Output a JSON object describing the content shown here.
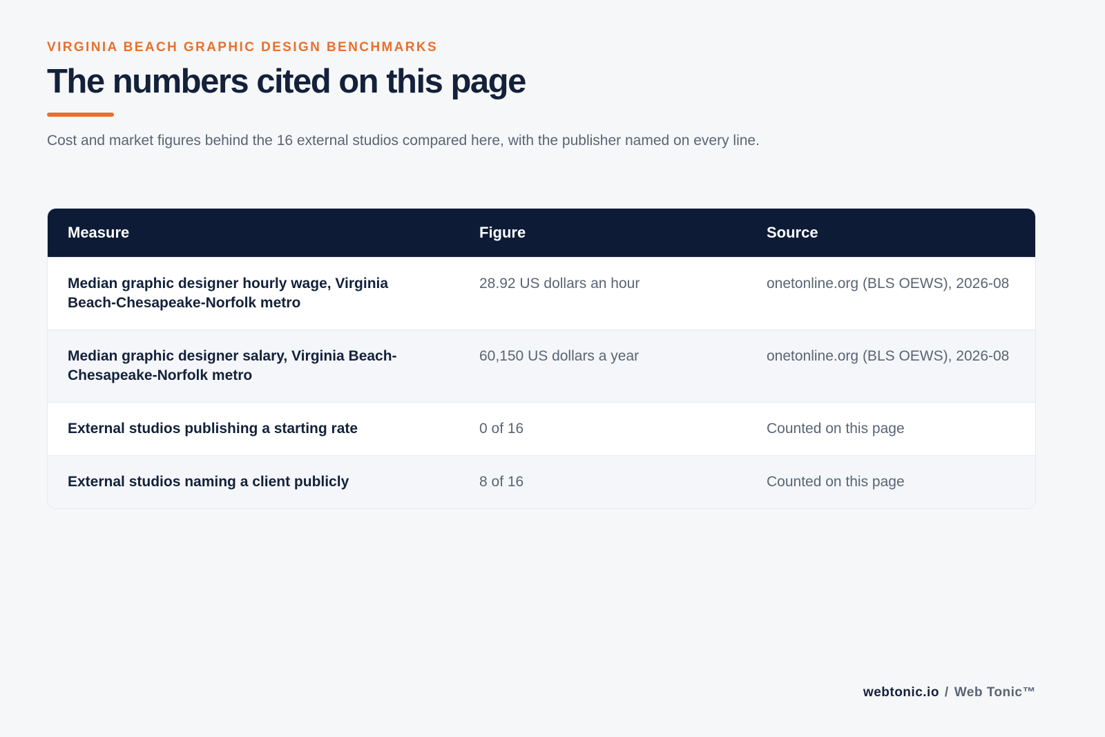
{
  "header": {
    "eyebrow": "VIRGINIA BEACH GRAPHIC DESIGN BENCHMARKS",
    "title": "The numbers cited on this page",
    "subtitle": "Cost and market figures behind the 16 external studios compared here, with the publisher named on every line."
  },
  "table": {
    "columns": [
      "Measure",
      "Figure",
      "Source"
    ],
    "rows": [
      [
        "Median graphic designer hourly wage, Virginia Beach-Chesapeake-Norfolk metro",
        "28.92 US dollars an hour",
        "onetonline.org (BLS OEWS), 2026-08"
      ],
      [
        "Median graphic designer salary, Virginia Beach-Chesapeake-Norfolk metro",
        "60,150 US dollars a year",
        "onetonline.org (BLS OEWS), 2026-08"
      ],
      [
        "External studios publishing a starting rate",
        "0 of 16",
        "Counted on this page"
      ],
      [
        "External studios naming a client publicly",
        "8 of 16",
        "Counted on this page"
      ]
    ]
  },
  "footer": {
    "site": "webtonic.io",
    "separator": "/",
    "brand": "Web Tonic™"
  }
}
